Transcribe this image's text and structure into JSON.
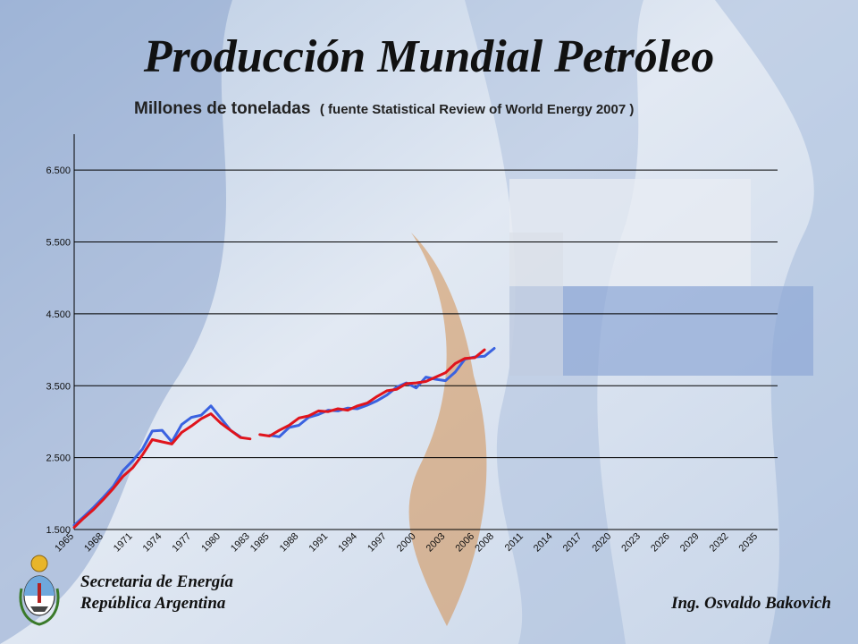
{
  "title": "Producción Mundial Petróleo",
  "subtitle_main": "Millones de toneladas",
  "subtitle_source": "( fuente Statistical Review of World Energy 2007 )",
  "footer": {
    "left_line1": "Secretaria de Energía",
    "left_line2": "República Argentina",
    "right": "Ing. Osvaldo Bakovich"
  },
  "colors": {
    "blue_series": "#3a62e0",
    "red_series": "#e0141c",
    "grid": "#000000"
  },
  "chart_data": {
    "type": "line",
    "ylim": [
      1500,
      7000
    ],
    "yticks": [
      1500,
      2500,
      3500,
      4500,
      5500,
      6500
    ],
    "ytick_labels": [
      "1.500",
      "2.500",
      "3.500",
      "4.500",
      "5.500",
      "6.500"
    ],
    "xlim": [
      1965,
      2037
    ],
    "xticks": [
      1965,
      1968,
      1971,
      1974,
      1977,
      1980,
      1983,
      1985,
      1988,
      1991,
      1994,
      1997,
      2000,
      2003,
      2006,
      2008,
      2011,
      2014,
      2017,
      2020,
      2023,
      2026,
      2029,
      2032,
      2035
    ],
    "grid": true,
    "series": [
      {
        "color": "#3a62e0",
        "segments": [
          [
            [
              1965,
              1560
            ],
            [
              1966,
              1680
            ],
            [
              1967,
              1810
            ],
            [
              1968,
              1950
            ],
            [
              1969,
              2100
            ],
            [
              1970,
              2320
            ],
            [
              1971,
              2460
            ],
            [
              1972,
              2620
            ],
            [
              1973,
              2870
            ],
            [
              1974,
              2880
            ],
            [
              1975,
              2720
            ],
            [
              1976,
              2960
            ],
            [
              1977,
              3060
            ],
            [
              1978,
              3090
            ],
            [
              1979,
              3220
            ],
            [
              1980,
              3050
            ],
            [
              1981,
              2880
            ],
            [
              1982,
              2790
            ]
          ],
          [
            [
              1985,
              2810
            ],
            [
              1986,
              2790
            ],
            [
              1987,
              2920
            ],
            [
              1988,
              2950
            ],
            [
              1989,
              3060
            ],
            [
              1990,
              3100
            ],
            [
              1991,
              3160
            ],
            [
              1992,
              3150
            ],
            [
              1993,
              3190
            ],
            [
              1994,
              3180
            ],
            [
              1995,
              3230
            ],
            [
              1996,
              3290
            ],
            [
              1997,
              3370
            ],
            [
              1998,
              3480
            ],
            [
              1999,
              3540
            ],
            [
              2000,
              3470
            ],
            [
              2001,
              3620
            ],
            [
              2002,
              3590
            ],
            [
              2003,
              3570
            ],
            [
              2004,
              3690
            ],
            [
              2005,
              3870
            ],
            [
              2006,
              3900
            ],
            [
              2007,
              3910
            ],
            [
              2008,
              4020
            ]
          ]
        ]
      },
      {
        "color": "#e0141c",
        "segments": [
          [
            [
              1965,
              1530
            ],
            [
              1966,
              1660
            ],
            [
              1967,
              1780
            ],
            [
              1968,
              1920
            ],
            [
              1969,
              2070
            ],
            [
              1970,
              2240
            ],
            [
              1971,
              2360
            ],
            [
              1972,
              2540
            ],
            [
              1973,
              2750
            ],
            [
              1974,
              2720
            ],
            [
              1975,
              2690
            ],
            [
              1976,
              2850
            ],
            [
              1977,
              2940
            ],
            [
              1978,
              3040
            ],
            [
              1979,
              3110
            ],
            [
              1980,
              2980
            ],
            [
              1981,
              2880
            ],
            [
              1982,
              2780
            ],
            [
              1983,
              2760
            ]
          ],
          [
            [
              1984,
              2820
            ],
            [
              1985,
              2800
            ],
            [
              1986,
              2880
            ],
            [
              1987,
              2950
            ],
            [
              1988,
              3050
            ],
            [
              1989,
              3080
            ],
            [
              1990,
              3150
            ],
            [
              1991,
              3140
            ],
            [
              1992,
              3180
            ],
            [
              1993,
              3160
            ],
            [
              1994,
              3220
            ],
            [
              1995,
              3260
            ],
            [
              1996,
              3350
            ],
            [
              1997,
              3430
            ],
            [
              1998,
              3450
            ],
            [
              1999,
              3530
            ],
            [
              2000,
              3540
            ],
            [
              2001,
              3560
            ],
            [
              2002,
              3620
            ],
            [
              2003,
              3680
            ],
            [
              2004,
              3810
            ],
            [
              2005,
              3880
            ],
            [
              2006,
              3890
            ],
            [
              2007,
              4000
            ]
          ]
        ]
      }
    ]
  }
}
